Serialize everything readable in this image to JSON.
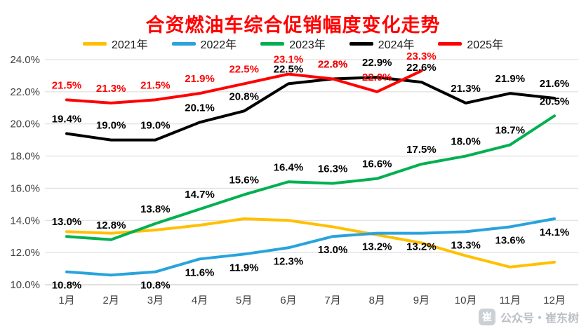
{
  "chart_data": {
    "type": "line",
    "title": "合资燃油车综合促销幅度变化走势",
    "title_color": "#FF0000",
    "categories": [
      "1月",
      "2月",
      "3月",
      "4月",
      "5月",
      "6月",
      "7月",
      "8月",
      "9月",
      "10月",
      "11月",
      "12月"
    ],
    "ylim": [
      10,
      24
    ],
    "ytick_step": 2,
    "ytick_labels": [
      "24.0%",
      "22.0%",
      "20.0%",
      "18.0%",
      "16.0%",
      "14.0%",
      "12.0%",
      "10.0%"
    ],
    "grid": true,
    "gridline_color": "#d9d9d9",
    "legend_position": "top",
    "series": [
      {
        "name": "2021年",
        "color": "#FFC000",
        "label_color": "#000000",
        "label_position": "above",
        "values": [
          13.3,
          13.2,
          13.4,
          13.7,
          14.1,
          14.0,
          13.6,
          13.1,
          12.6,
          11.8,
          11.1,
          11.4
        ],
        "labels": [
          null,
          null,
          null,
          null,
          null,
          null,
          null,
          null,
          null,
          null,
          null,
          null
        ]
      },
      {
        "name": "2022年",
        "color": "#29A3DC",
        "label_color": "#000000",
        "label_position": "below",
        "values": [
          10.8,
          10.6,
          10.8,
          11.6,
          11.9,
          12.3,
          13.0,
          13.2,
          13.2,
          13.3,
          13.6,
          14.1
        ],
        "labels": [
          "10.8%",
          null,
          "10.8%",
          "11.6%",
          "11.9%",
          "12.3%",
          "13.0%",
          "13.2%",
          "13.2%",
          "13.3%",
          "13.6%",
          "14.1%"
        ]
      },
      {
        "name": "2023年",
        "color": "#00B050",
        "label_color": "#000000",
        "label_position": "above",
        "values": [
          13.0,
          12.8,
          13.8,
          14.7,
          15.6,
          16.4,
          16.3,
          16.6,
          17.5,
          18.0,
          18.7,
          20.5
        ],
        "labels": [
          "13.0%",
          "12.8%",
          "13.8%",
          "14.7%",
          "15.6%",
          "16.4%",
          "16.3%",
          "16.6%",
          "17.5%",
          "18.0%",
          "18.7%",
          "20.5%"
        ]
      },
      {
        "name": "2024年",
        "color": "#000000",
        "label_color": "#000000",
        "label_position": "above",
        "values": [
          19.4,
          19.0,
          19.0,
          20.1,
          20.8,
          22.5,
          22.8,
          22.9,
          22.6,
          21.3,
          21.9,
          21.6
        ],
        "labels": [
          "19.4%",
          "19.0%",
          "19.0%",
          "20.1%",
          "20.8%",
          "22.5%",
          "22.8%",
          "22.9%",
          "22.6%",
          "21.3%",
          "21.9%",
          "21.6%"
        ]
      },
      {
        "name": "2025年",
        "color": "#FF0000",
        "label_color": "#FF0000",
        "label_position": "above",
        "values": [
          21.5,
          21.3,
          21.5,
          21.9,
          22.5,
          23.1,
          22.8,
          22.0,
          23.3
        ],
        "labels": [
          "21.5%",
          "21.3%",
          "21.5%",
          "21.9%",
          "22.5%",
          "23.1%",
          "22.8%",
          "22.0%",
          "23.3%"
        ]
      }
    ]
  },
  "watermark": {
    "icon": "wechat-official-account-logo",
    "icon_text": "崔",
    "text": "公众号・崔东树"
  }
}
